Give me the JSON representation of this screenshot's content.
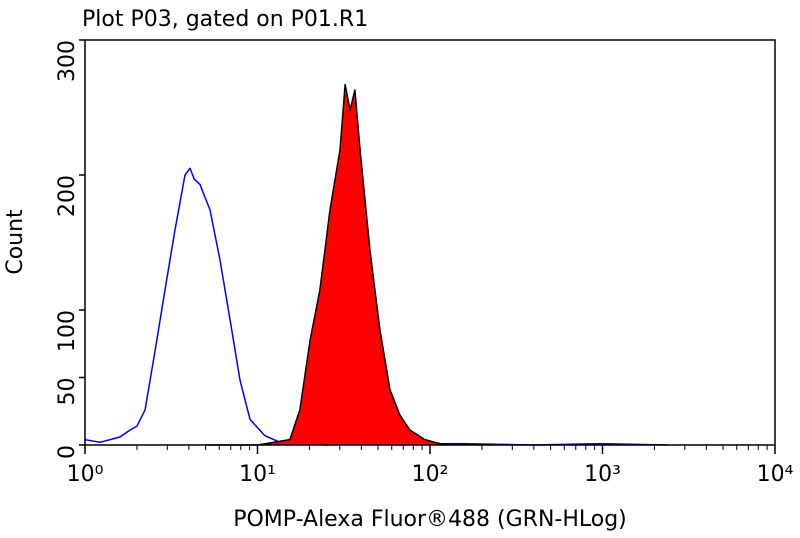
{
  "chart_data": {
    "type": "line",
    "title": "Plot P03, gated on P01.R1",
    "xlabel": "POMP-Alexa Fluor®488 (GRN-HLog)",
    "ylabel": "Count",
    "xscale": "log",
    "xlim": [
      1,
      10000
    ],
    "ylim": [
      0,
      300
    ],
    "xticks": [
      {
        "value": 1,
        "label": "10⁰"
      },
      {
        "value": 10,
        "label": "10¹"
      },
      {
        "value": 100,
        "label": "10²"
      },
      {
        "value": 1000,
        "label": "10³"
      },
      {
        "value": 10000,
        "label": "10⁴"
      }
    ],
    "yticks": [
      0,
      50,
      100,
      200,
      300
    ],
    "xminor": true,
    "series": [
      {
        "color": "#0000ff",
        "filled": false,
        "x": [
          1.0,
          1.1,
          1.22,
          1.4,
          1.6,
          1.82,
          2.0,
          2.23,
          2.55,
          2.91,
          3.32,
          3.8,
          4.06,
          4.3,
          4.64,
          5.31,
          6.06,
          6.93,
          7.92,
          9.05,
          11,
          13.5,
          17.6,
          25,
          40,
          67,
          150,
          400,
          968,
          2400
        ],
        "values": [
          4,
          3,
          2,
          4,
          6,
          11,
          14,
          26,
          70,
          115,
          159,
          200,
          205,
          197,
          193,
          174,
          137,
          93,
          48,
          19,
          7,
          2,
          1,
          0,
          1,
          0,
          1,
          0,
          1,
          0
        ]
      },
      {
        "color": "#ff0000",
        "edge_color": "#000000",
        "filled": true,
        "x": [
          5,
          10,
          15.4,
          17.6,
          20.2,
          23,
          26.3,
          30.1,
          32.2,
          34.4,
          36.7,
          39.3,
          44.9,
          51.3,
          58.6,
          67,
          76.6,
          93.5,
          114,
          200
        ],
        "values": [
          0,
          0,
          4,
          26,
          78,
          115,
          174,
          219,
          267,
          248,
          263,
          219,
          144,
          85,
          41,
          22,
          11,
          4,
          1,
          0
        ]
      }
    ]
  }
}
